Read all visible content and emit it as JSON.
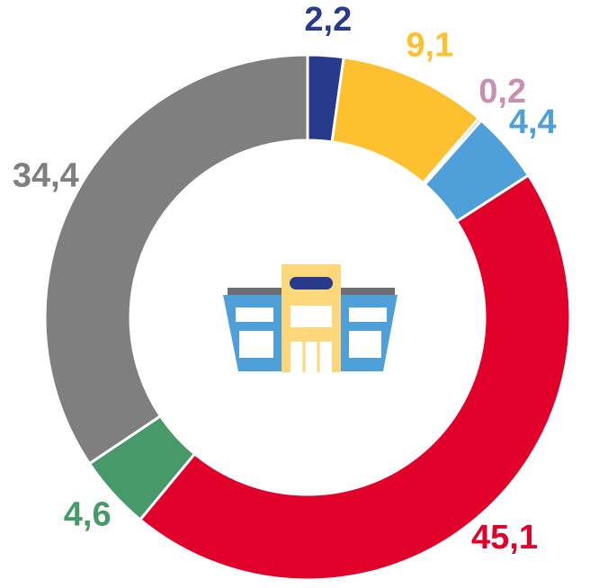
{
  "chart_data": {
    "type": "donut",
    "categories": [
      null,
      null,
      null,
      null,
      null,
      null,
      null
    ],
    "values": [
      2.2,
      9.1,
      0.2,
      4.4,
      45.1,
      4.6,
      34.4
    ],
    "value_labels": [
      "2,2",
      "9,1",
      "0,2",
      "4,4",
      "45,1",
      "4,6",
      "34,4"
    ],
    "colors": [
      "#283a8c",
      "#fdc12f",
      "#c98fb0",
      "#4f9fd8",
      "#e0002a",
      "#47996a",
      "#7f7f7f"
    ]
  }
}
